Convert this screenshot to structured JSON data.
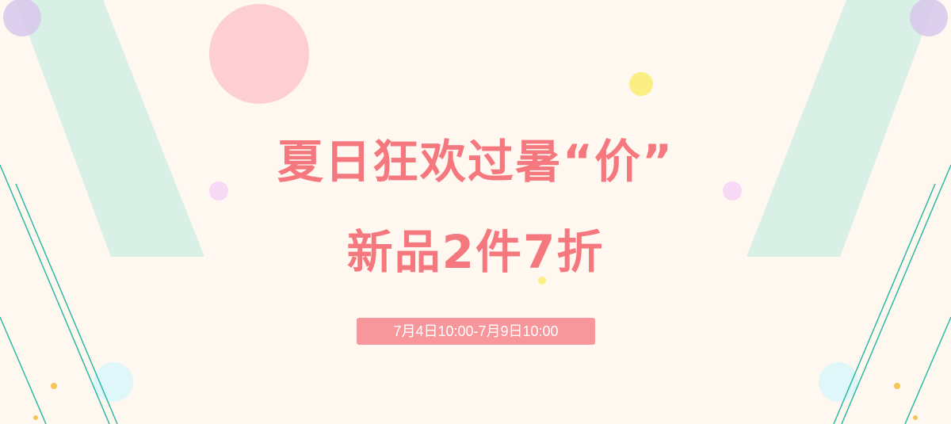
{
  "banner": {
    "headline_line1": "夏日狂欢过暑“价”",
    "headline_line2": "新品2件7折",
    "date_range": "7月4日10:00-7月9日10:00"
  },
  "colors": {
    "background": "#fff8f1",
    "headline": "#f5787f",
    "badge": "#f7979b",
    "mint_stripe": "#d9f0e6",
    "teal_line": "#2fb9a5",
    "pink_circle": "#fdcfd3",
    "yellow_dot": "#fbef84",
    "lilac_dot": "#f7d8f5",
    "cyan_circle": "#dff7f9"
  }
}
